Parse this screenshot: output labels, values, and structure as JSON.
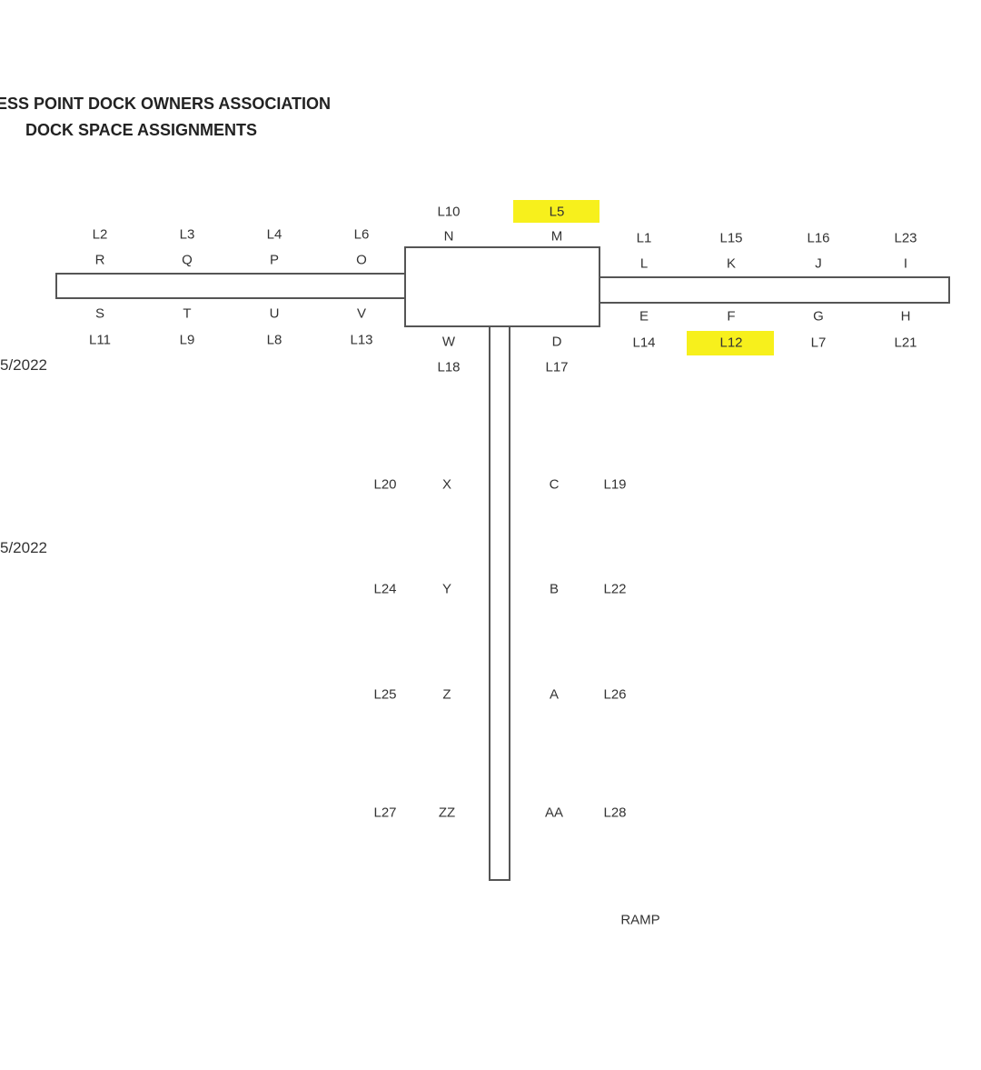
{
  "header": {
    "title_line1": "ESS POINT DOCK OWNERS ASSOCIATION",
    "title_line2": "DOCK SPACE ASSIGNMENTS"
  },
  "side_dates": [
    "5/2022",
    "5/2022"
  ],
  "highlight_color": "#f7f01c",
  "left_arm": {
    "top_owners": [
      "L2",
      "L3",
      "L4",
      "L6"
    ],
    "top_slips": [
      "R",
      "Q",
      "P",
      "O"
    ],
    "bottom_slips": [
      "S",
      "T",
      "U",
      "V"
    ],
    "bottom_owners": [
      "L11",
      "L9",
      "L8",
      "L13"
    ]
  },
  "center": {
    "top": [
      {
        "owner": "L10",
        "slip": "N",
        "highlighted": false
      },
      {
        "owner": "L5",
        "slip": "M",
        "highlighted": true
      }
    ],
    "bottom": [
      {
        "slip": "W",
        "owner": "L18"
      },
      {
        "slip": "D",
        "owner": "L17"
      }
    ]
  },
  "right_arm": {
    "top_owners": [
      "L1",
      "L15",
      "L16",
      "L23"
    ],
    "top_slips": [
      "L",
      "K",
      "J",
      "I"
    ],
    "bottom_slips": [
      "E",
      "F",
      "G",
      "H"
    ],
    "bottom_owners": [
      "L14",
      "L12",
      "L7",
      "L21"
    ],
    "highlighted_owner": "L12"
  },
  "stem": [
    {
      "left_owner": "L20",
      "left_slip": "X",
      "right_slip": "C",
      "right_owner": "L19"
    },
    {
      "left_owner": "L24",
      "left_slip": "Y",
      "right_slip": "B",
      "right_owner": "L22"
    },
    {
      "left_owner": "L25",
      "left_slip": "Z",
      "right_slip": "A",
      "right_owner": "L26"
    },
    {
      "left_owner": "L27",
      "left_slip": "ZZ",
      "right_slip": "AA",
      "right_owner": "L28"
    }
  ],
  "ramp_label": "RAMP"
}
